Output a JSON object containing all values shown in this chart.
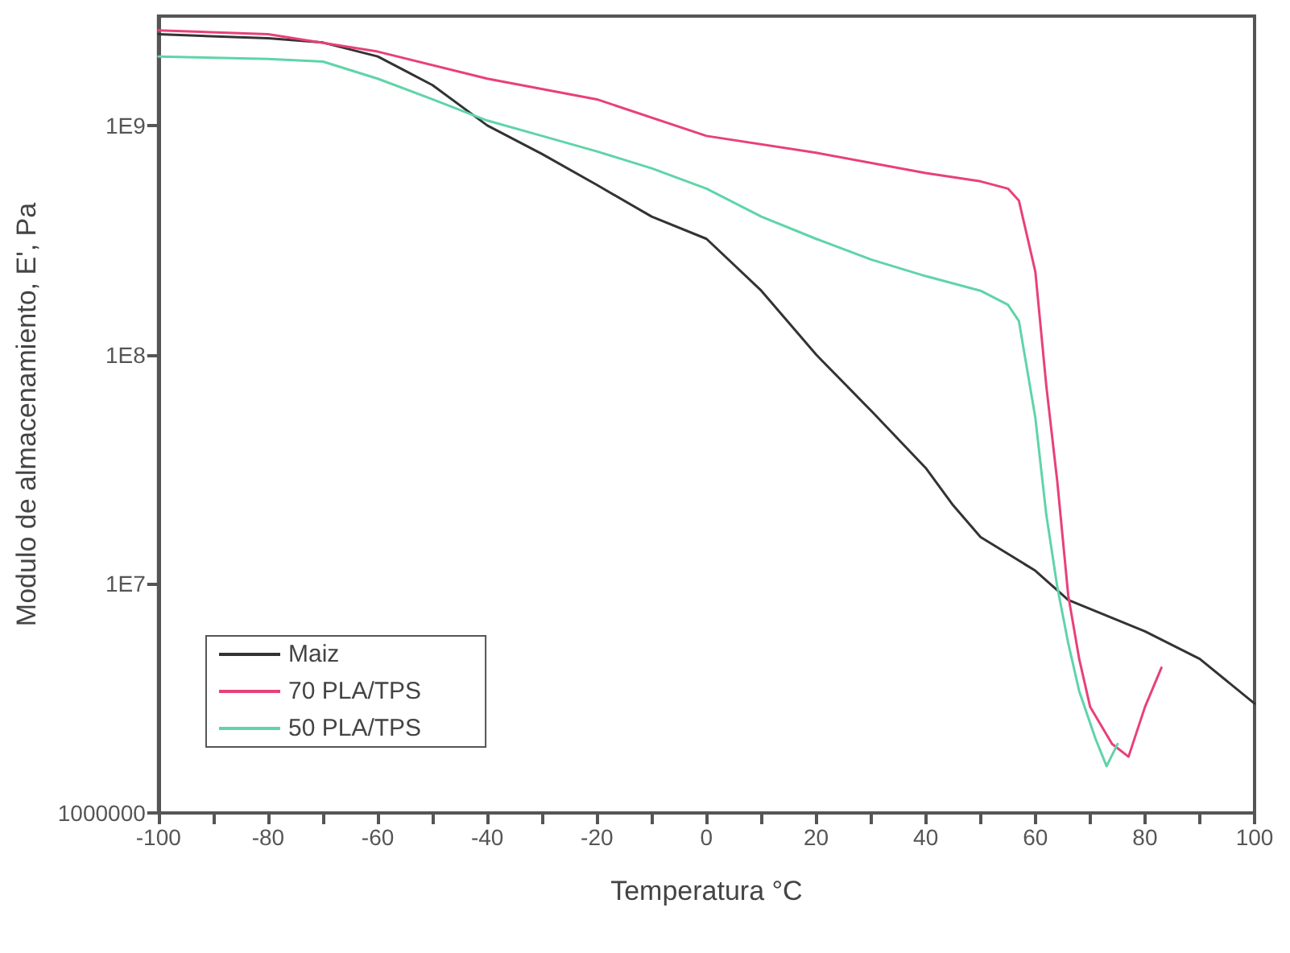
{
  "chart_data": {
    "type": "line",
    "xlabel": "Temperatura °C",
    "ylabel": "Modulo de almacenamiento, E', Pa",
    "log": "y",
    "grid": false,
    "legend": "bottom left",
    "marker": "none",
    "line_style": "solid",
    "xlim": [
      -100,
      100
    ],
    "xticks": [
      -100,
      {
        "value": -90,
        "label": null
      },
      -80,
      {
        "value": -70,
        "label": null
      },
      -60,
      {
        "value": -50,
        "label": null
      },
      -40,
      {
        "value": -30,
        "label": null
      },
      -20,
      {
        "value": -10,
        "label": null
      },
      0,
      {
        "value": 10,
        "label": null
      },
      20,
      {
        "value": 30,
        "label": null
      },
      40,
      {
        "value": 50,
        "label": null
      },
      60,
      {
        "value": 70,
        "label": null
      },
      80,
      {
        "value": 90,
        "label": null
      },
      100
    ],
    "ylim": [
      1000000,
      3000000000
    ],
    "yticks": [
      {
        "value": 1000000,
        "label": "1000000"
      },
      {
        "value": 10000000,
        "label": "1E7"
      },
      {
        "value": 100000000,
        "label": "1E8"
      },
      {
        "value": 1000000000,
        "label": "1E9"
      }
    ],
    "series": [
      {
        "name": "Maiz",
        "color": "#333333",
        "x": [
          -100,
          -80,
          -70,
          -60,
          -50,
          -40,
          -30,
          -20,
          -10,
          0,
          10,
          20,
          30,
          40,
          45,
          50,
          60,
          66,
          80,
          90,
          100
        ],
        "values": [
          2500000000,
          2400000000,
          2300000000,
          2000000000,
          1500000000,
          1000000000,
          750000000,
          550000000,
          400000000,
          320000000,
          190000000,
          100000000,
          57000000,
          32000000,
          22000000,
          16000000,
          11400000,
          8500000,
          6200000,
          4700000,
          3000000
        ]
      },
      {
        "name": "70 PLA/TPS",
        "color": "#e8407a",
        "x": [
          -100,
          -80,
          -60,
          -40,
          -20,
          0,
          20,
          40,
          50,
          55,
          57,
          60,
          62,
          64,
          66,
          68,
          70,
          74,
          77,
          80,
          83
        ],
        "values": [
          2600000000,
          2500000000,
          2100000000,
          1600000000,
          1300000000,
          900000000,
          760000000,
          620000000,
          570000000,
          530000000,
          470000000,
          230000000,
          73000000,
          28000000,
          8900000,
          4700000,
          2900000,
          2000000,
          1760000,
          2900000,
          4300000
        ]
      },
      {
        "name": "50 PLA/TPS",
        "color": "#5fd4a8",
        "x": [
          -100,
          -80,
          -70,
          -60,
          -50,
          -40,
          -30,
          -20,
          -10,
          0,
          10,
          20,
          30,
          40,
          50,
          55,
          57,
          60,
          62,
          64,
          66,
          68,
          71,
          73,
          75
        ],
        "values": [
          2000000000,
          1950000000,
          1900000000,
          1600000000,
          1300000000,
          1050000000,
          900000000,
          770000000,
          650000000,
          530000000,
          400000000,
          320000000,
          260000000,
          220000000,
          190000000,
          165000000,
          140000000,
          53000000,
          20000000,
          9700000,
          5500000,
          3400000,
          2100000,
          1600000,
          2000000
        ]
      }
    ]
  }
}
